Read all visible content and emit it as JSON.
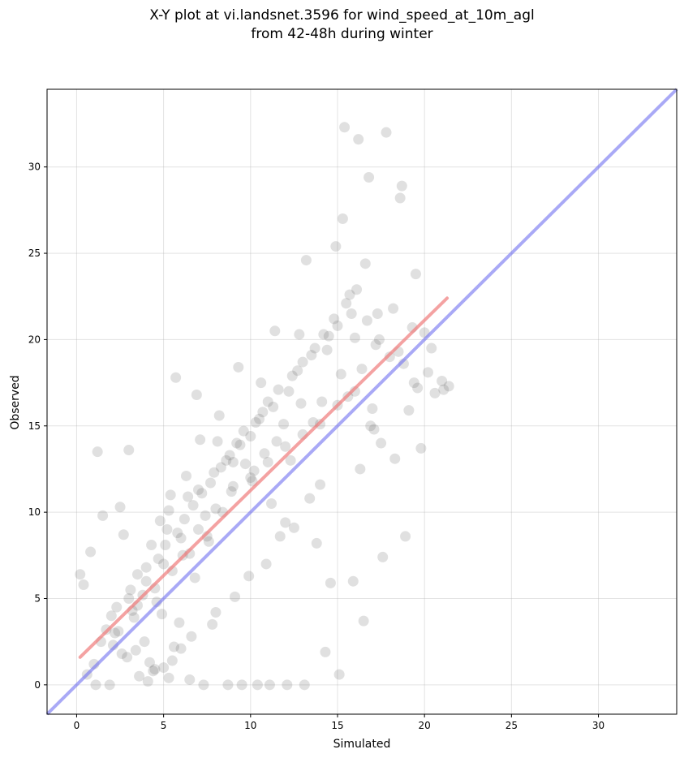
{
  "chart_data": {
    "type": "scatter",
    "title_line1": "X-Y plot at vi.landsnet.3596 for wind_speed_at_10m_agl",
    "title_line2": "from 42-48h during winter",
    "xlabel": "Simulated",
    "ylabel": "Observed",
    "xlim": [
      -1.7,
      34.5
    ],
    "ylim": [
      -1.7,
      34.5
    ],
    "xticks": [
      0,
      5,
      10,
      15,
      20,
      25,
      30
    ],
    "yticks": [
      0,
      5,
      10,
      15,
      20,
      25,
      30
    ],
    "grid": true,
    "point_color": "#555555",
    "identity_line": {
      "from": [
        -1.7,
        -1.7
      ],
      "to": [
        34.5,
        34.5
      ],
      "color": "#6f6ff0"
    },
    "fit_line": {
      "from": [
        0.2,
        1.6
      ],
      "to": [
        21.3,
        22.4
      ],
      "color": "#f07a7a"
    },
    "series": [
      {
        "x": [
          1.2,
          3.0,
          2.5,
          5.2,
          3.8,
          6.1,
          7.4,
          8.9,
          10.2,
          11.5,
          12.3,
          13.6,
          14.1,
          15.2,
          16.0,
          17.3,
          18.5,
          19.6,
          20.0,
          21.0,
          15.4,
          16.2,
          17.8,
          18.7,
          18.6,
          19.5,
          16.8,
          15.3,
          14.9,
          13.2,
          12.8,
          11.4,
          10.6,
          9.3,
          8.2,
          7.1,
          6.3,
          5.4,
          4.3,
          3.2,
          2.1,
          1.0,
          0.6,
          0.8,
          1.5,
          2.7,
          3.5,
          4.6,
          5.9,
          6.8,
          7.6,
          8.4,
          9.7,
          10.8,
          11.9,
          12.9,
          14.4,
          15.7,
          16.6,
          17.2,
          18.2,
          19.3,
          20.2,
          21.4,
          19.8,
          18.9,
          17.6,
          16.5,
          15.9,
          14.6,
          13.8,
          12.5,
          11.2,
          10.1,
          9.0,
          8.1,
          6.9,
          5.7,
          4.9,
          3.9,
          2.9,
          1.9,
          1.1,
          0.4,
          0.2,
          1.7,
          2.3,
          3.3,
          4.1,
          5.0,
          5.6,
          6.5,
          7.3,
          8.7,
          9.5,
          10.4,
          11.1,
          12.1,
          13.1,
          14.3,
          15.1,
          16.3,
          17.5,
          18.3,
          19.1,
          20.4,
          15.6,
          16.9,
          17.0,
          14.0,
          13.4,
          12.0,
          11.7,
          10.9,
          9.9,
          9.1,
          8.0,
          7.8,
          6.6,
          6.0,
          5.5,
          4.4,
          3.6,
          2.6,
          2.2,
          1.4,
          4.8,
          5.3,
          6.4,
          7.0,
          7.9,
          8.6,
          9.4,
          10.0,
          10.5,
          11.3,
          12.2,
          12.7,
          13.5,
          14.2,
          14.8,
          15.5,
          16.1,
          16.7,
          17.4,
          18.0,
          18.8,
          19.4,
          20.6,
          21.1,
          3.1,
          4.0,
          4.7,
          5.1,
          5.8,
          6.2,
          6.7,
          7.2,
          7.7,
          8.3,
          8.8,
          9.2,
          9.6,
          10.3,
          10.7,
          11.0,
          11.6,
          12.4,
          13.0,
          13.7,
          14.5,
          15.0,
          15.8,
          16.4,
          17.1,
          2.4,
          3.4,
          4.2,
          4.5,
          5.3,
          3.0,
          4.0,
          5.0,
          6.0,
          7.0,
          8.0,
          9.0,
          10.0,
          11.0,
          12.0,
          13.0,
          14.0,
          15.0,
          16.0,
          2.0,
          3.5,
          4.5,
          5.5,
          6.5,
          7.5
        ],
        "y": [
          13.5,
          13.6,
          10.3,
          9.0,
          5.2,
          7.5,
          9.8,
          11.2,
          12.4,
          14.1,
          13.0,
          15.2,
          16.4,
          18.0,
          20.1,
          21.5,
          19.3,
          17.2,
          20.4,
          17.6,
          32.3,
          31.6,
          32.0,
          28.9,
          28.2,
          23.8,
          29.4,
          27.0,
          25.4,
          24.6,
          20.3,
          20.5,
          17.5,
          18.4,
          15.6,
          14.2,
          12.1,
          11.0,
          8.1,
          4.3,
          2.3,
          1.2,
          0.6,
          7.7,
          9.8,
          8.7,
          6.4,
          4.8,
          3.6,
          6.2,
          8.3,
          10.0,
          12.8,
          13.4,
          15.1,
          16.3,
          19.4,
          22.6,
          24.4,
          19.7,
          21.8,
          20.7,
          18.1,
          17.3,
          13.7,
          8.6,
          7.4,
          3.7,
          6.0,
          5.9,
          8.2,
          9.1,
          10.5,
          11.8,
          12.9,
          14.1,
          16.8,
          17.8,
          4.1,
          2.5,
          1.6,
          0.0,
          0.0,
          5.8,
          6.4,
          3.2,
          4.5,
          3.9,
          0.2,
          1.0,
          2.2,
          0.3,
          0.0,
          0.0,
          0.0,
          0.0,
          0.0,
          0.0,
          0.0,
          1.9,
          0.6,
          12.5,
          14.0,
          13.1,
          15.9,
          19.5,
          16.7,
          15.0,
          16.0,
          11.6,
          10.8,
          9.4,
          8.6,
          7.0,
          6.3,
          5.1,
          4.2,
          3.5,
          2.8,
          2.1,
          1.4,
          0.8,
          0.5,
          1.8,
          3.0,
          2.5,
          9.5,
          10.1,
          10.9,
          11.3,
          12.3,
          13.0,
          13.9,
          14.4,
          15.4,
          16.1,
          17.0,
          18.2,
          19.1,
          20.3,
          21.2,
          22.1,
          22.9,
          21.1,
          20.0,
          19.0,
          18.6,
          17.5,
          16.9,
          17.1,
          5.5,
          6.8,
          7.3,
          8.1,
          8.8,
          9.6,
          10.4,
          11.1,
          11.7,
          12.6,
          13.3,
          14.0,
          14.7,
          15.2,
          15.8,
          16.4,
          17.1,
          17.9,
          18.7,
          19.5,
          20.2,
          20.8,
          21.5,
          18.3,
          14.8,
          3.1,
          2.0,
          1.3,
          0.9,
          0.4,
          5.0,
          6.0,
          7.0,
          8.5,
          9.0,
          10.2,
          11.5,
          12.0,
          12.9,
          13.8,
          14.5,
          15.1,
          16.2,
          17.0,
          4.0,
          4.6,
          5.6,
          6.6,
          7.6,
          8.6
        ]
      }
    ]
  }
}
